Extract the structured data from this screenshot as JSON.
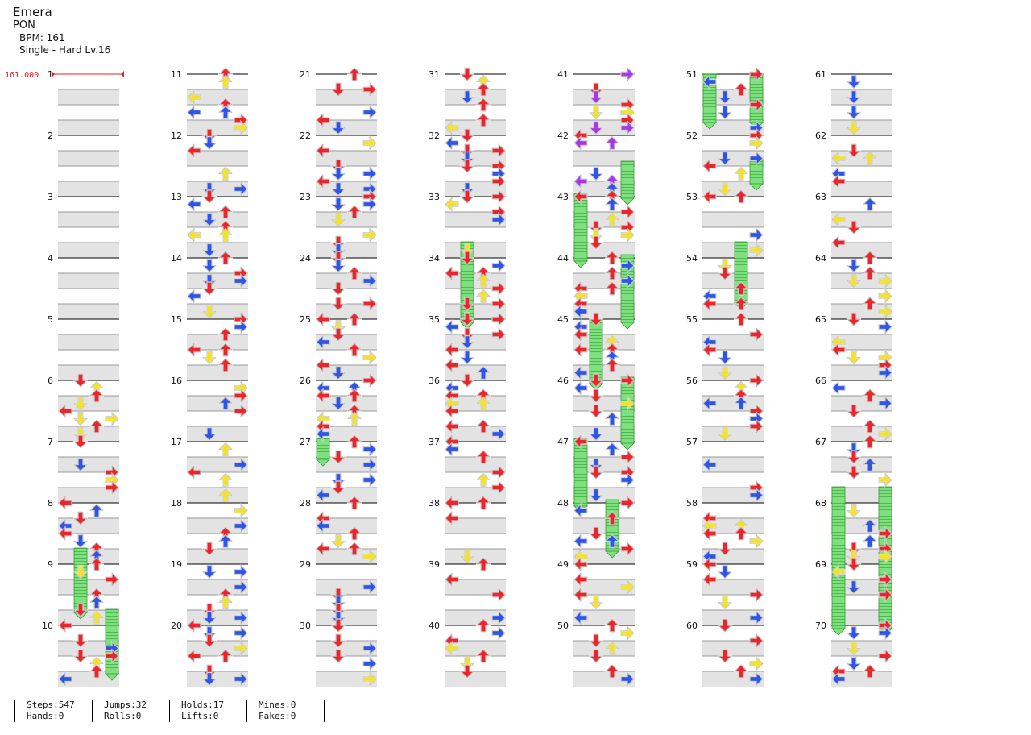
{
  "header": {
    "title": "Emera",
    "artist": "PON",
    "bpm": "BPM: 161",
    "difficulty": "Single - Hard  Lv.16"
  },
  "bpm_marker": "161.000",
  "measures": {
    "first": 1,
    "last": 70,
    "per_column": 10,
    "columns": 7
  },
  "stats": {
    "steps": "Steps:547",
    "hands": "Hands:0",
    "jumps": "Jumps:32",
    "rolls": "Rolls:0",
    "holds": "Holds:17",
    "lifts": "Lifts:0",
    "mines": "Mines:0",
    "fakes": "Fakes:0"
  },
  "arrow_colors": {
    "quarter": "#e8262b",
    "eighth": "#2f55e6",
    "sixteenth": "#f2e230",
    "triplet": "#a638e6",
    "hold": "#6ed36e"
  }
}
